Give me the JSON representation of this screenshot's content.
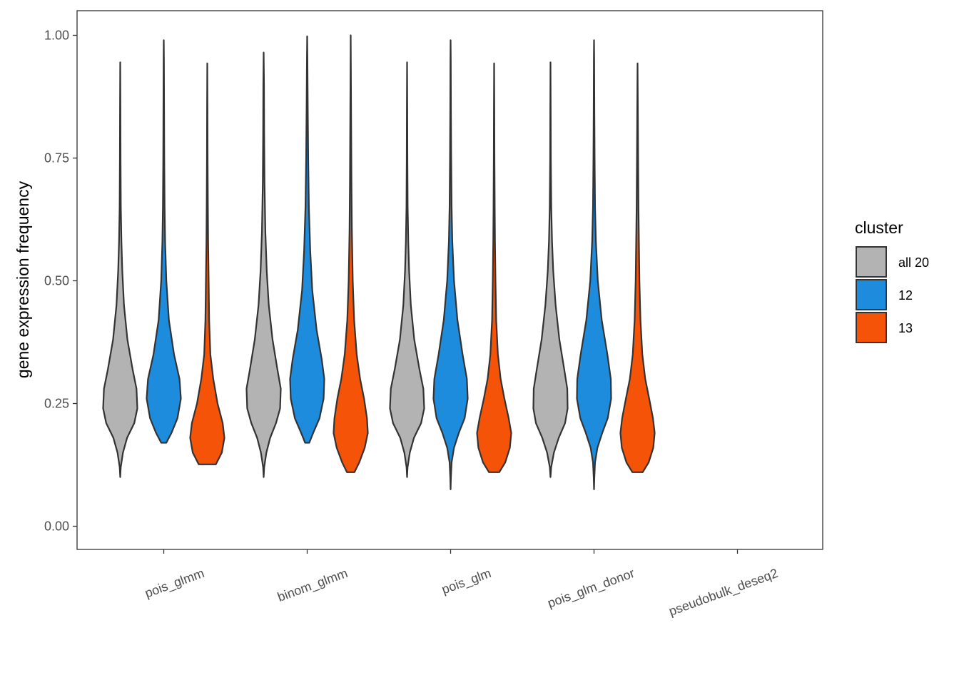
{
  "chart_data": {
    "type": "violin",
    "ylabel": "gene expression frequency",
    "xlabel": "",
    "ylim": [
      -0.048,
      1.048
    ],
    "y_ticks": [
      "0.00",
      "0.25",
      "0.50",
      "0.75",
      "1.00"
    ],
    "y_tick_values": [
      0,
      0.25,
      0.5,
      0.75,
      1.0
    ],
    "grid": false,
    "categories": [
      "pois_glmm",
      "binom_glmm",
      "pois_glm",
      "pois_glm_donor",
      "pseudobulk_deseq2"
    ],
    "legend": {
      "title": "cluster",
      "placement": "right",
      "entries": [
        {
          "label": "all 20",
          "color": "#b3b3b3"
        },
        {
          "label": "12",
          "color": "#1e8cdc"
        },
        {
          "label": "13",
          "color": "#f55308"
        }
      ]
    },
    "series": [
      {
        "name": "all 20",
        "color": "#b3b3b3",
        "violins": [
          {
            "category": "pois_glmm",
            "min": 0.1,
            "max": 0.945,
            "profile": [
              [
                0.1,
                0.0
              ],
              [
                0.12,
                0.03
              ],
              [
                0.15,
                0.16
              ],
              [
                0.18,
                0.4
              ],
              [
                0.21,
                0.82
              ],
              [
                0.24,
                1.0
              ],
              [
                0.28,
                0.95
              ],
              [
                0.32,
                0.72
              ],
              [
                0.38,
                0.42
              ],
              [
                0.45,
                0.22
              ],
              [
                0.52,
                0.12
              ],
              [
                0.58,
                0.07
              ],
              [
                0.65,
                0.035
              ],
              [
                0.75,
                0.02
              ],
              [
                0.85,
                0.012
              ],
              [
                0.945,
                0.0
              ]
            ]
          },
          {
            "category": "binom_glmm",
            "min": 0.1,
            "max": 0.965,
            "profile": [
              [
                0.1,
                0.0
              ],
              [
                0.12,
                0.03
              ],
              [
                0.15,
                0.16
              ],
              [
                0.18,
                0.38
              ],
              [
                0.21,
                0.72
              ],
              [
                0.24,
                0.96
              ],
              [
                0.28,
                1.0
              ],
              [
                0.32,
                0.8
              ],
              [
                0.38,
                0.52
              ],
              [
                0.45,
                0.3
              ],
              [
                0.52,
                0.18
              ],
              [
                0.6,
                0.1
              ],
              [
                0.7,
                0.05
              ],
              [
                0.8,
                0.03
              ],
              [
                0.9,
                0.02
              ],
              [
                0.965,
                0.0
              ]
            ]
          },
          {
            "category": "pois_glm",
            "min": 0.1,
            "max": 0.945,
            "profile": [
              [
                0.1,
                0.0
              ],
              [
                0.12,
                0.03
              ],
              [
                0.15,
                0.16
              ],
              [
                0.18,
                0.4
              ],
              [
                0.21,
                0.82
              ],
              [
                0.24,
                1.0
              ],
              [
                0.28,
                0.95
              ],
              [
                0.32,
                0.72
              ],
              [
                0.38,
                0.42
              ],
              [
                0.45,
                0.22
              ],
              [
                0.52,
                0.12
              ],
              [
                0.58,
                0.07
              ],
              [
                0.65,
                0.035
              ],
              [
                0.75,
                0.02
              ],
              [
                0.85,
                0.012
              ],
              [
                0.945,
                0.0
              ]
            ]
          },
          {
            "category": "pois_glm_donor",
            "min": 0.1,
            "max": 0.945,
            "profile": [
              [
                0.1,
                0.0
              ],
              [
                0.12,
                0.04
              ],
              [
                0.15,
                0.2
              ],
              [
                0.18,
                0.48
              ],
              [
                0.21,
                0.85
              ],
              [
                0.24,
                1.0
              ],
              [
                0.28,
                0.98
              ],
              [
                0.32,
                0.8
              ],
              [
                0.38,
                0.52
              ],
              [
                0.45,
                0.3
              ],
              [
                0.52,
                0.16
              ],
              [
                0.58,
                0.09
              ],
              [
                0.65,
                0.045
              ],
              [
                0.75,
                0.02
              ],
              [
                0.85,
                0.012
              ],
              [
                0.945,
                0.0
              ]
            ]
          }
        ]
      },
      {
        "name": "12",
        "color": "#1e8cdc",
        "violins": [
          {
            "category": "pois_glmm",
            "min": 0.17,
            "max": 0.99,
            "profile": [
              [
                0.17,
                0.15
              ],
              [
                0.19,
                0.45
              ],
              [
                0.22,
                0.8
              ],
              [
                0.26,
                1.0
              ],
              [
                0.3,
                0.92
              ],
              [
                0.35,
                0.6
              ],
              [
                0.42,
                0.3
              ],
              [
                0.5,
                0.15
              ],
              [
                0.58,
                0.08
              ],
              [
                0.65,
                0.05
              ],
              [
                0.75,
                0.03
              ],
              [
                0.85,
                0.02
              ],
              [
                0.95,
                0.01
              ],
              [
                0.99,
                0.0
              ]
            ]
          },
          {
            "category": "binom_glmm",
            "min": 0.17,
            "max": 0.998,
            "profile": [
              [
                0.17,
                0.12
              ],
              [
                0.19,
                0.35
              ],
              [
                0.22,
                0.72
              ],
              [
                0.26,
                0.96
              ],
              [
                0.3,
                1.0
              ],
              [
                0.34,
                0.85
              ],
              [
                0.4,
                0.55
              ],
              [
                0.48,
                0.3
              ],
              [
                0.56,
                0.18
              ],
              [
                0.65,
                0.1
              ],
              [
                0.75,
                0.06
              ],
              [
                0.85,
                0.035
              ],
              [
                0.95,
                0.015
              ],
              [
                0.998,
                0.0
              ]
            ]
          },
          {
            "category": "pois_glm",
            "min": 0.075,
            "max": 0.99,
            "profile": [
              [
                0.075,
                0.0
              ],
              [
                0.1,
                0.02
              ],
              [
                0.13,
                0.06
              ],
              [
                0.16,
                0.2
              ],
              [
                0.19,
                0.48
              ],
              [
                0.22,
                0.82
              ],
              [
                0.26,
                1.0
              ],
              [
                0.3,
                0.95
              ],
              [
                0.35,
                0.7
              ],
              [
                0.42,
                0.4
              ],
              [
                0.5,
                0.2
              ],
              [
                0.58,
                0.1
              ],
              [
                0.65,
                0.06
              ],
              [
                0.75,
                0.035
              ],
              [
                0.85,
                0.02
              ],
              [
                0.95,
                0.01
              ],
              [
                0.99,
                0.0
              ]
            ]
          },
          {
            "category": "pois_glm_donor",
            "min": 0.075,
            "max": 0.99,
            "profile": [
              [
                0.075,
                0.0
              ],
              [
                0.1,
                0.02
              ],
              [
                0.13,
                0.06
              ],
              [
                0.16,
                0.2
              ],
              [
                0.19,
                0.48
              ],
              [
                0.22,
                0.8
              ],
              [
                0.26,
                1.0
              ],
              [
                0.3,
                0.98
              ],
              [
                0.35,
                0.78
              ],
              [
                0.42,
                0.45
              ],
              [
                0.5,
                0.22
              ],
              [
                0.58,
                0.11
              ],
              [
                0.65,
                0.06
              ],
              [
                0.75,
                0.035
              ],
              [
                0.85,
                0.02
              ],
              [
                0.95,
                0.01
              ],
              [
                0.99,
                0.0
              ]
            ]
          }
        ]
      },
      {
        "name": "13",
        "color": "#f55308",
        "violins": [
          {
            "category": "pois_glmm",
            "min": 0.126,
            "max": 0.943,
            "profile": [
              [
                0.126,
                0.5
              ],
              [
                0.15,
                0.85
              ],
              [
                0.18,
                1.0
              ],
              [
                0.21,
                0.9
              ],
              [
                0.25,
                0.6
              ],
              [
                0.3,
                0.35
              ],
              [
                0.35,
                0.18
              ],
              [
                0.42,
                0.11
              ],
              [
                0.5,
                0.08
              ],
              [
                0.58,
                0.05
              ],
              [
                0.65,
                0.035
              ],
              [
                0.75,
                0.02
              ],
              [
                0.85,
                0.012
              ],
              [
                0.943,
                0.0
              ]
            ]
          },
          {
            "category": "binom_glmm",
            "min": 0.11,
            "max": 1.0,
            "profile": [
              [
                0.11,
                0.22
              ],
              [
                0.13,
                0.5
              ],
              [
                0.16,
                0.82
              ],
              [
                0.19,
                1.0
              ],
              [
                0.22,
                0.95
              ],
              [
                0.26,
                0.78
              ],
              [
                0.3,
                0.55
              ],
              [
                0.35,
                0.35
              ],
              [
                0.42,
                0.2
              ],
              [
                0.5,
                0.12
              ],
              [
                0.6,
                0.07
              ],
              [
                0.7,
                0.045
              ],
              [
                0.8,
                0.03
              ],
              [
                0.9,
                0.015
              ],
              [
                1.0,
                0.0
              ]
            ]
          },
          {
            "category": "pois_glm",
            "min": 0.11,
            "max": 0.943,
            "profile": [
              [
                0.11,
                0.3
              ],
              [
                0.13,
                0.65
              ],
              [
                0.16,
                0.92
              ],
              [
                0.19,
                1.0
              ],
              [
                0.22,
                0.85
              ],
              [
                0.26,
                0.6
              ],
              [
                0.3,
                0.38
              ],
              [
                0.35,
                0.22
              ],
              [
                0.42,
                0.12
              ],
              [
                0.5,
                0.08
              ],
              [
                0.58,
                0.05
              ],
              [
                0.65,
                0.035
              ],
              [
                0.75,
                0.02
              ],
              [
                0.85,
                0.012
              ],
              [
                0.943,
                0.0
              ]
            ]
          },
          {
            "category": "pois_glm_donor",
            "min": 0.11,
            "max": 0.943,
            "profile": [
              [
                0.11,
                0.3
              ],
              [
                0.13,
                0.65
              ],
              [
                0.16,
                0.92
              ],
              [
                0.19,
                1.0
              ],
              [
                0.22,
                0.9
              ],
              [
                0.26,
                0.68
              ],
              [
                0.3,
                0.45
              ],
              [
                0.35,
                0.28
              ],
              [
                0.42,
                0.17
              ],
              [
                0.5,
                0.11
              ],
              [
                0.58,
                0.08
              ],
              [
                0.65,
                0.055
              ],
              [
                0.75,
                0.035
              ],
              [
                0.85,
                0.018
              ],
              [
                0.943,
                0.0
              ]
            ]
          }
        ]
      }
    ]
  }
}
